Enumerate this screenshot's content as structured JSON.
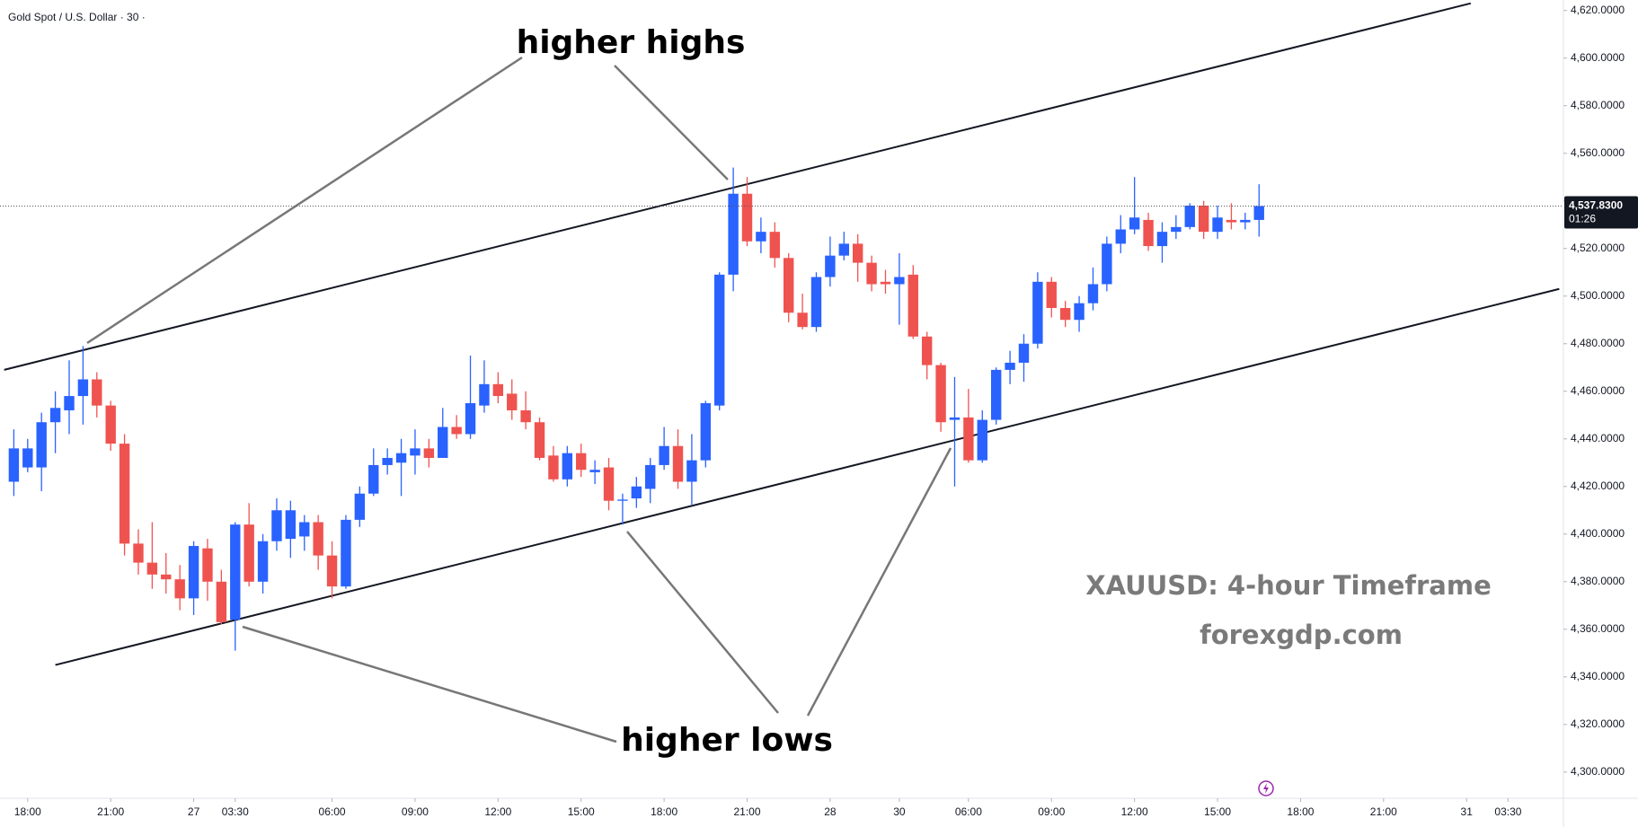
{
  "chart_data": {
    "type": "candlestick",
    "title": "Gold Spot / U.S. Dollar · 30 ·",
    "up_color": "#2962ff",
    "down_color": "#ef5350",
    "grid": false,
    "open": [
      4422,
      4428,
      4428,
      4447,
      4452,
      4458,
      4465,
      4454,
      4438,
      4396,
      4388,
      4383,
      4381,
      4373,
      4394,
      4380,
      4364,
      4404,
      4380,
      4397,
      4398,
      4399,
      4405,
      4391,
      4378,
      4406,
      4417,
      4429,
      4430,
      4433,
      4436,
      4432,
      4445,
      4442,
      4454,
      4463,
      4459,
      4452,
      4447,
      4433,
      4423,
      4434,
      4426,
      4428,
      4414,
      4415,
      4419,
      4429,
      4437,
      4422,
      4431,
      4454,
      4509,
      4543,
      4523,
      4527,
      4516,
      4493,
      4487,
      4508,
      4517,
      4522,
      4514,
      4506,
      4505,
      4509,
      4483,
      4471,
      4448,
      4449,
      4431,
      4448,
      4469,
      4472,
      4480,
      4506,
      4495,
      4490,
      4497,
      4505,
      4522,
      4528,
      4532,
      4521,
      4527,
      4529,
      4538,
      4527,
      4532,
      4531,
      4532
    ],
    "high": [
      4444,
      4440,
      4451,
      4460,
      4473,
      4479,
      4468,
      4456,
      4442,
      4402,
      4405,
      4392,
      4387,
      4397,
      4398,
      4385,
      4405,
      4413,
      4400,
      4415,
      4414,
      4408,
      4408,
      4397,
      4408,
      4420,
      4436,
      4436,
      4440,
      4444,
      4440,
      4453,
      4450,
      4475,
      4473,
      4468,
      4465,
      4460,
      4449,
      4437,
      4437,
      4438,
      4431,
      4432,
      4417,
      4424,
      4432,
      4445,
      4444,
      4442,
      4456,
      4510,
      4554,
      4550,
      4533,
      4531,
      4518,
      4501,
      4510,
      4525,
      4527,
      4526,
      4517,
      4511,
      4518,
      4513,
      4485,
      4472,
      4466,
      4461,
      4452,
      4470,
      4477,
      4484,
      4510,
      4508,
      4498,
      4500,
      4512,
      4525,
      4534,
      4550,
      4535,
      4531,
      4534,
      4539,
      4540,
      4538,
      4539,
      4535,
      4547
    ],
    "low": [
      4416,
      4426,
      4418,
      4434,
      4442,
      4446,
      4449,
      4435,
      4391,
      4383,
      4377,
      4375,
      4368,
      4366,
      4372,
      4362,
      4351,
      4378,
      4375,
      4393,
      4390,
      4393,
      4385,
      4373,
      4377,
      4403,
      4416,
      4425,
      4416,
      4425,
      4428,
      4432,
      4440,
      4440,
      4451,
      4455,
      4448,
      4444,
      4431,
      4422,
      4420,
      4424,
      4421,
      4410,
      4404,
      4411,
      4413,
      4427,
      4419,
      4412,
      4428,
      4452,
      4502,
      4521,
      4518,
      4512,
      4489,
      4486,
      4485,
      4504,
      4515,
      4506,
      4502,
      4501,
      4488,
      4482,
      4465,
      4443,
      4420,
      4430,
      4430,
      4446,
      4463,
      4464,
      4478,
      4491,
      4487,
      4485,
      4494,
      4502,
      4518,
      4526,
      4519,
      4514,
      4524,
      4528,
      4524,
      4524,
      4528,
      4528,
      4525
    ],
    "close": [
      4436,
      4436,
      4447,
      4453,
      4458,
      4465,
      4454,
      4438,
      4396,
      4388,
      4383,
      4381,
      4373,
      4395,
      4380,
      4363,
      4404,
      4380,
      4397,
      4410,
      4410,
      4405,
      4391,
      4378,
      4406,
      4417,
      4429,
      4432,
      4434,
      4436,
      4432,
      4445,
      4442,
      4455,
      4463,
      4458,
      4452,
      4447,
      4432,
      4423,
      4434,
      4427,
      4427,
      4414,
      4414.5,
      4420,
      4429,
      4437,
      4422,
      4431,
      4455,
      4509,
      4543,
      4523,
      4527,
      4516,
      4493,
      4487,
      4508,
      4517,
      4522,
      4514,
      4505,
      4505,
      4508,
      4483,
      4471,
      4447,
      4449,
      4431,
      4448,
      4469,
      4472,
      4480,
      4506,
      4495,
      4490,
      4497,
      4505,
      4522,
      4528,
      4533,
      4521,
      4527,
      4529,
      4538,
      4527,
      4533,
      4531,
      4532,
      4537.83
    ],
    "xlim": [
      -1,
      112
    ],
    "xticks": [
      {
        "value": 1,
        "label": "18:00"
      },
      {
        "value": 7,
        "label": "21:00"
      },
      {
        "value": 13,
        "label": "27"
      },
      {
        "value": 16,
        "label": "03:30"
      },
      {
        "value": 23,
        "label": "06:00"
      },
      {
        "value": 29,
        "label": "09:00"
      },
      {
        "value": 35,
        "label": "12:00"
      },
      {
        "value": 41,
        "label": "15:00"
      },
      {
        "value": 47,
        "label": "18:00"
      },
      {
        "value": 53,
        "label": "21:00"
      },
      {
        "value": 59,
        "label": "28"
      },
      {
        "value": 64,
        "label": "30"
      },
      {
        "value": 69,
        "label": "06:00"
      },
      {
        "value": 75,
        "label": "09:00"
      },
      {
        "value": 81,
        "label": "12:00"
      },
      {
        "value": 87,
        "label": "15:00"
      },
      {
        "value": 93,
        "label": "18:00"
      },
      {
        "value": 99,
        "label": "21:00"
      },
      {
        "value": 105,
        "label": "31"
      },
      {
        "value": 108,
        "label": "03:30"
      }
    ],
    "ylim": [
      4289,
      4624.4
    ],
    "yticks": [
      {
        "value": 4300,
        "label": "4,300.0000"
      },
      {
        "value": 4320,
        "label": "4,320.0000"
      },
      {
        "value": 4340,
        "label": "4,340.0000"
      },
      {
        "value": 4360,
        "label": "4,360.0000"
      },
      {
        "value": 4380,
        "label": "4,380.0000"
      },
      {
        "value": 4400,
        "label": "4,400.0000"
      },
      {
        "value": 4420,
        "label": "4,420.0000"
      },
      {
        "value": 4440,
        "label": "4,440.0000"
      },
      {
        "value": 4460,
        "label": "4,460.0000"
      },
      {
        "value": 4480,
        "label": "4,480.0000"
      },
      {
        "value": 4500,
        "label": "4,500.0000"
      },
      {
        "value": 4520,
        "label": "4,520.0000"
      },
      {
        "value": 4540,
        "label": "4,540.0000"
      },
      {
        "value": 4560,
        "label": "4,560.0000"
      },
      {
        "value": 4580,
        "label": "4,580.0000"
      },
      {
        "value": 4600,
        "label": "4,600.0000"
      },
      {
        "value": 4620,
        "label": "4,620.0000"
      }
    ],
    "price_label": {
      "value": 4537.83,
      "label": "4,537.8300",
      "countdown": "01:26"
    },
    "trendlines": [
      {
        "x": [
          -0.7,
          105.3
        ],
        "y": [
          4469,
          4623
        ]
      },
      {
        "x": [
          3,
          111.7
        ],
        "y": [
          4345,
          4503
        ]
      }
    ],
    "annotations": [
      "higher highs",
      "higher lows",
      "XAUUSD: 4-hour Timeframe",
      "forexgdp.com"
    ]
  }
}
